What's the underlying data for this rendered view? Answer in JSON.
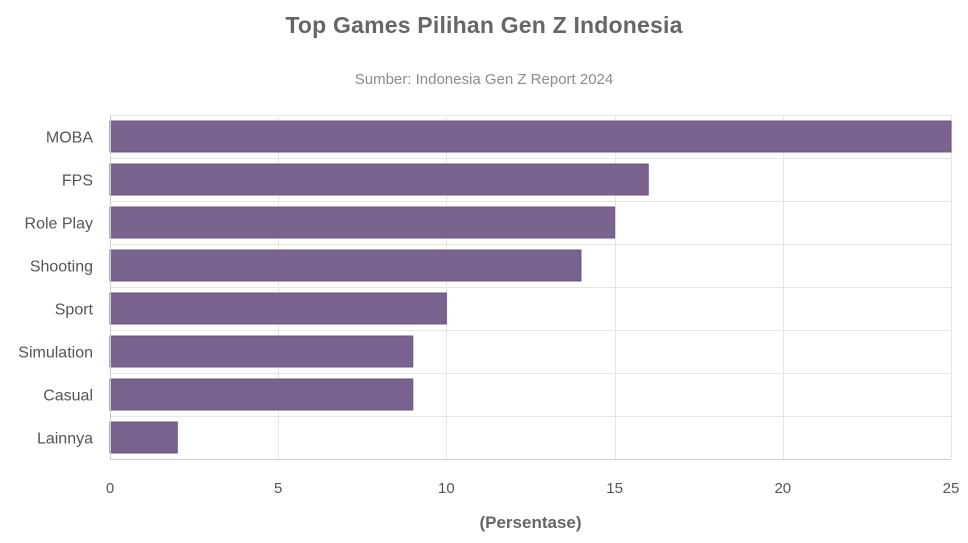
{
  "chart_data": {
    "type": "bar",
    "orientation": "horizontal",
    "title": "Top Games Pilihan Gen Z Indonesia",
    "subtitle": "Sumber: Indonesia Gen Z Report 2024",
    "xlabel": "(Persentase)",
    "ylabel": "",
    "categories": [
      "MOBA",
      "FPS",
      "Role Play",
      "Shooting",
      "Sport",
      "Simulation",
      "Casual",
      "Lainnya"
    ],
    "values": [
      25,
      16,
      15,
      14,
      10,
      9,
      9,
      2
    ],
    "xlim": [
      0,
      25
    ],
    "xticks": [
      0,
      5,
      10,
      15,
      20,
      25
    ],
    "grid": true,
    "legend": "none",
    "colors": {
      "bar": "#7b6390",
      "bar_edge": "#6b5482",
      "grid": "#e6e6e6",
      "axis": "#cccccc"
    }
  }
}
